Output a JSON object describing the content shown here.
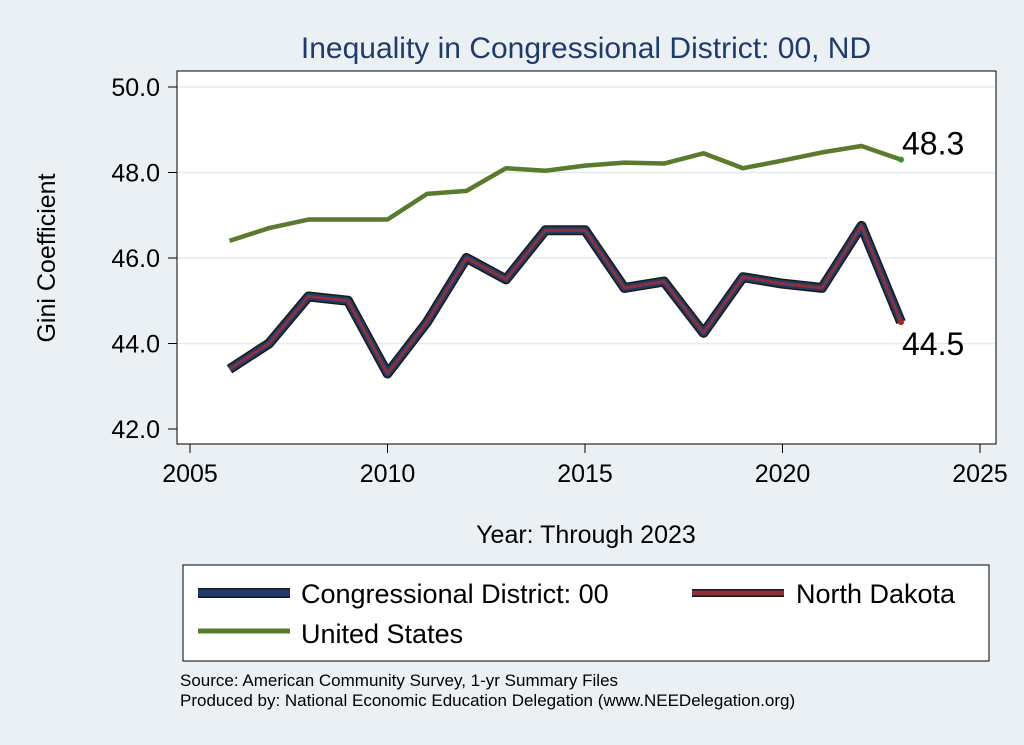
{
  "chart_data": {
    "type": "line",
    "title": "Inequality in Congressional District:  00, ND",
    "xlabel": "Year: Through 2023",
    "ylabel": "Gini Coefficient",
    "xlim": [
      2005,
      2025
    ],
    "ylim": [
      42.0,
      50.0
    ],
    "x_ticks": [
      2005,
      2010,
      2015,
      2020,
      2025
    ],
    "y_ticks": [
      42.0,
      44.0,
      46.0,
      48.0,
      50.0
    ],
    "y_tick_labels": [
      "42.0",
      "44.0",
      "46.0",
      "48.0",
      "50.0"
    ],
    "grid": true,
    "x": [
      2006,
      2007,
      2008,
      2009,
      2010,
      2011,
      2012,
      2013,
      2014,
      2015,
      2016,
      2017,
      2018,
      2019,
      2020,
      2021,
      2022,
      2023
    ],
    "series": [
      {
        "name": "Congressional District:  00",
        "color": "#1f3b6b",
        "values": [
          43.4,
          44.0,
          45.1,
          45.0,
          43.3,
          44.5,
          46.0,
          45.5,
          46.65,
          46.65,
          45.3,
          45.45,
          44.25,
          45.55,
          45.4,
          45.3,
          46.75,
          44.5
        ]
      },
      {
        "name": "North Dakota",
        "color": "#8b3238",
        "values": [
          43.4,
          44.0,
          45.1,
          45.0,
          43.3,
          44.5,
          46.0,
          45.5,
          46.65,
          46.65,
          45.3,
          45.45,
          44.25,
          45.55,
          45.4,
          45.3,
          46.75,
          44.5
        ]
      },
      {
        "name": "United States",
        "color": "#5a7a2e",
        "values": [
          46.4,
          46.7,
          46.9,
          46.9,
          46.9,
          47.5,
          47.57,
          48.1,
          48.04,
          48.16,
          48.23,
          48.21,
          48.45,
          48.1,
          48.28,
          48.47,
          48.62,
          48.3
        ]
      }
    ],
    "end_labels": [
      {
        "series": "United States",
        "text": "48.3"
      },
      {
        "series": "North Dakota",
        "text": "44.5"
      }
    ],
    "legend_position": "bottom"
  },
  "notes": {
    "source": "Source: American Community Survey, 1-yr Summary Files",
    "produced_by": "Produced by: National Economic Education Delegation (www.NEEDelegation.org)"
  }
}
